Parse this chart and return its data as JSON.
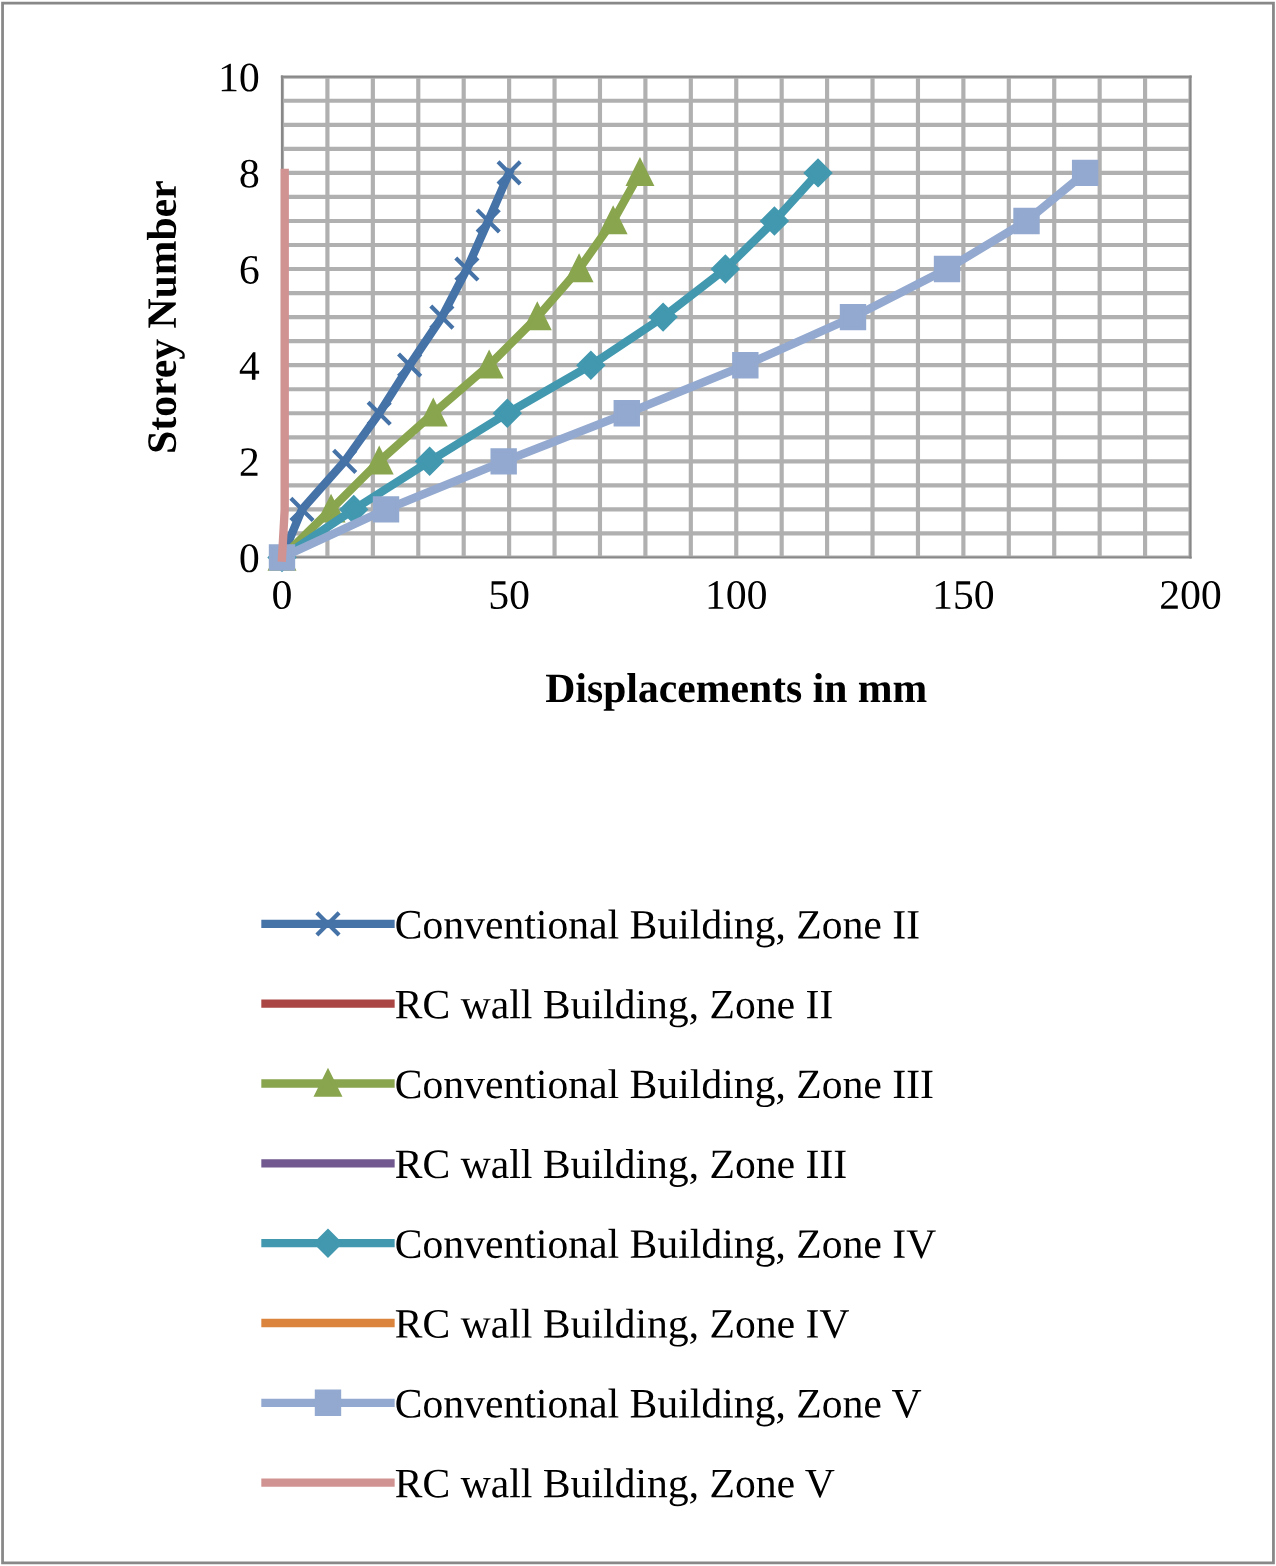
{
  "chart_data": {
    "type": "line",
    "xlabel": "Displacements in mm",
    "ylabel": "Storey Number",
    "xlim": [
      0,
      200
    ],
    "xticks": [
      0,
      50,
      100,
      150,
      200
    ],
    "ylim": [
      0,
      10
    ],
    "yticks": [
      0,
      2,
      4,
      6,
      8,
      10
    ],
    "grid": true,
    "legend": "bottom",
    "series": [
      {
        "name": "Conventional Building, Zone II",
        "color": "#4572a7",
        "marker": "cross",
        "x": [
          0,
          4.4,
          13.8,
          21.4,
          28.1,
          35.2,
          40.7,
          45.4,
          50
        ],
        "values": [
          0,
          1,
          2,
          3,
          4,
          5,
          6,
          7,
          8
        ]
      },
      {
        "name": "RC wall Building, Zone II",
        "color": "#aa4643",
        "marker": "none",
        "values": [
          null,
          null,
          null,
          null,
          null,
          null,
          null,
          null,
          null
        ]
      },
      {
        "name": "Conventional Building, Zone III",
        "color": "#89a54e",
        "marker": "triangle",
        "x": [
          0,
          10.8,
          21.4,
          33.3,
          45.6,
          56.2,
          65.4,
          72.9,
          78.8
        ],
        "values": [
          0,
          1,
          2,
          3,
          4,
          5,
          6,
          7,
          8
        ]
      },
      {
        "name": "RC wall Building, Zone III",
        "color": "#71588f",
        "marker": "none",
        "values": [
          null,
          null,
          null,
          null,
          null,
          null,
          null,
          null,
          null
        ]
      },
      {
        "name": "Conventional Building, Zone IV",
        "color": "#4198af",
        "marker": "diamond",
        "x": [
          0,
          15.8,
          32.5,
          49.6,
          68,
          83.9,
          97.6,
          108.4,
          118
        ],
        "values": [
          0,
          1,
          2,
          3,
          4,
          5,
          6,
          7,
          8
        ]
      },
      {
        "name": "RC wall Building, Zone IV",
        "color": "#db843d",
        "marker": "none",
        "values": [
          null,
          null,
          null,
          null,
          null,
          null,
          null,
          null,
          null
        ]
      },
      {
        "name": "Conventional Building, Zone V",
        "color": "#93a9cf",
        "marker": "square",
        "x": [
          0,
          22.9,
          48.8,
          75.9,
          102,
          125.7,
          146.4,
          163.9,
          176.8
        ],
        "values": [
          0,
          1,
          2,
          3,
          4,
          5,
          6,
          7,
          8
        ]
      },
      {
        "name": "RC wall Building, Zone V",
        "color": "#d19392",
        "marker": "none",
        "x": [
          0,
          0.6,
          0.6,
          0.6,
          0.6,
          0.6,
          0.6,
          0.6,
          0.6
        ],
        "values": [
          0,
          1,
          2,
          3,
          4,
          5,
          6,
          7,
          8
        ]
      }
    ]
  }
}
